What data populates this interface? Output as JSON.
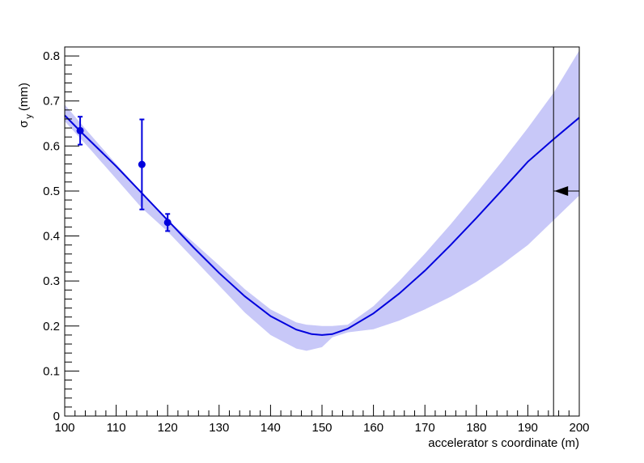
{
  "chart_data": {
    "type": "line",
    "title": "",
    "xlabel": "accelerator s coordinate (m)",
    "ylabel": {
      "main": "σ",
      "sub": "y",
      "unit": "(mm)"
    },
    "xlim": [
      100,
      200
    ],
    "ylim": [
      0,
      0.82
    ],
    "grid": false,
    "legend": "none",
    "x_ticks": [
      100,
      110,
      120,
      130,
      140,
      150,
      160,
      170,
      180,
      190,
      200
    ],
    "y_ticks": [
      0,
      0.1,
      0.2,
      0.3,
      0.4,
      0.5,
      0.6,
      0.7,
      0.8
    ],
    "x_tick_labels": [
      "100",
      "110",
      "120",
      "130",
      "140",
      "150",
      "160",
      "170",
      "180",
      "190",
      "200"
    ],
    "y_tick_labels": [
      "0",
      "0.1",
      "0.2",
      "0.3",
      "0.4",
      "0.5",
      "0.6",
      "0.7",
      "0.8"
    ],
    "colors": {
      "fit_line": "#0000dd",
      "band": "#c8c8f8",
      "points": "#0000dd",
      "axes": "#000000"
    },
    "fit_curve": {
      "x": [
        100,
        103,
        110,
        115,
        120,
        125,
        130,
        135,
        140,
        145,
        148,
        150,
        152,
        155,
        160,
        165,
        170,
        175,
        180,
        185,
        190,
        195,
        200
      ],
      "y": [
        0.668,
        0.633,
        0.555,
        0.495,
        0.435,
        0.375,
        0.318,
        0.266,
        0.222,
        0.192,
        0.182,
        0.18,
        0.182,
        0.194,
        0.228,
        0.272,
        0.323,
        0.38,
        0.44,
        0.502,
        0.565,
        0.615,
        0.663
      ]
    },
    "error_band": {
      "x": [
        100,
        105,
        110,
        115,
        120,
        125,
        130,
        135,
        140,
        145,
        147,
        150,
        152,
        155,
        160,
        165,
        170,
        175,
        180,
        185,
        190,
        195,
        200
      ],
      "lower": [
        0.655,
        0.592,
        0.527,
        0.462,
        0.41,
        0.35,
        0.29,
        0.23,
        0.18,
        0.15,
        0.145,
        0.153,
        0.175,
        0.186,
        0.193,
        0.212,
        0.237,
        0.265,
        0.298,
        0.337,
        0.38,
        0.435,
        0.49
      ],
      "upper": [
        0.692,
        0.625,
        0.56,
        0.497,
        0.435,
        0.386,
        0.335,
        0.282,
        0.237,
        0.208,
        0.203,
        0.2,
        0.2,
        0.203,
        0.244,
        0.3,
        0.361,
        0.426,
        0.495,
        0.566,
        0.64,
        0.718,
        0.812
      ]
    },
    "data_points": [
      {
        "x": 103,
        "y": 0.634,
        "err": 0.031
      },
      {
        "x": 115,
        "y": 0.559,
        "err": 0.1
      },
      {
        "x": 120,
        "y": 0.43,
        "err": 0.019
      }
    ],
    "marker_line_x": 195,
    "arrow": {
      "from_x": 200,
      "to_x": 195,
      "y": 0.5
    }
  }
}
